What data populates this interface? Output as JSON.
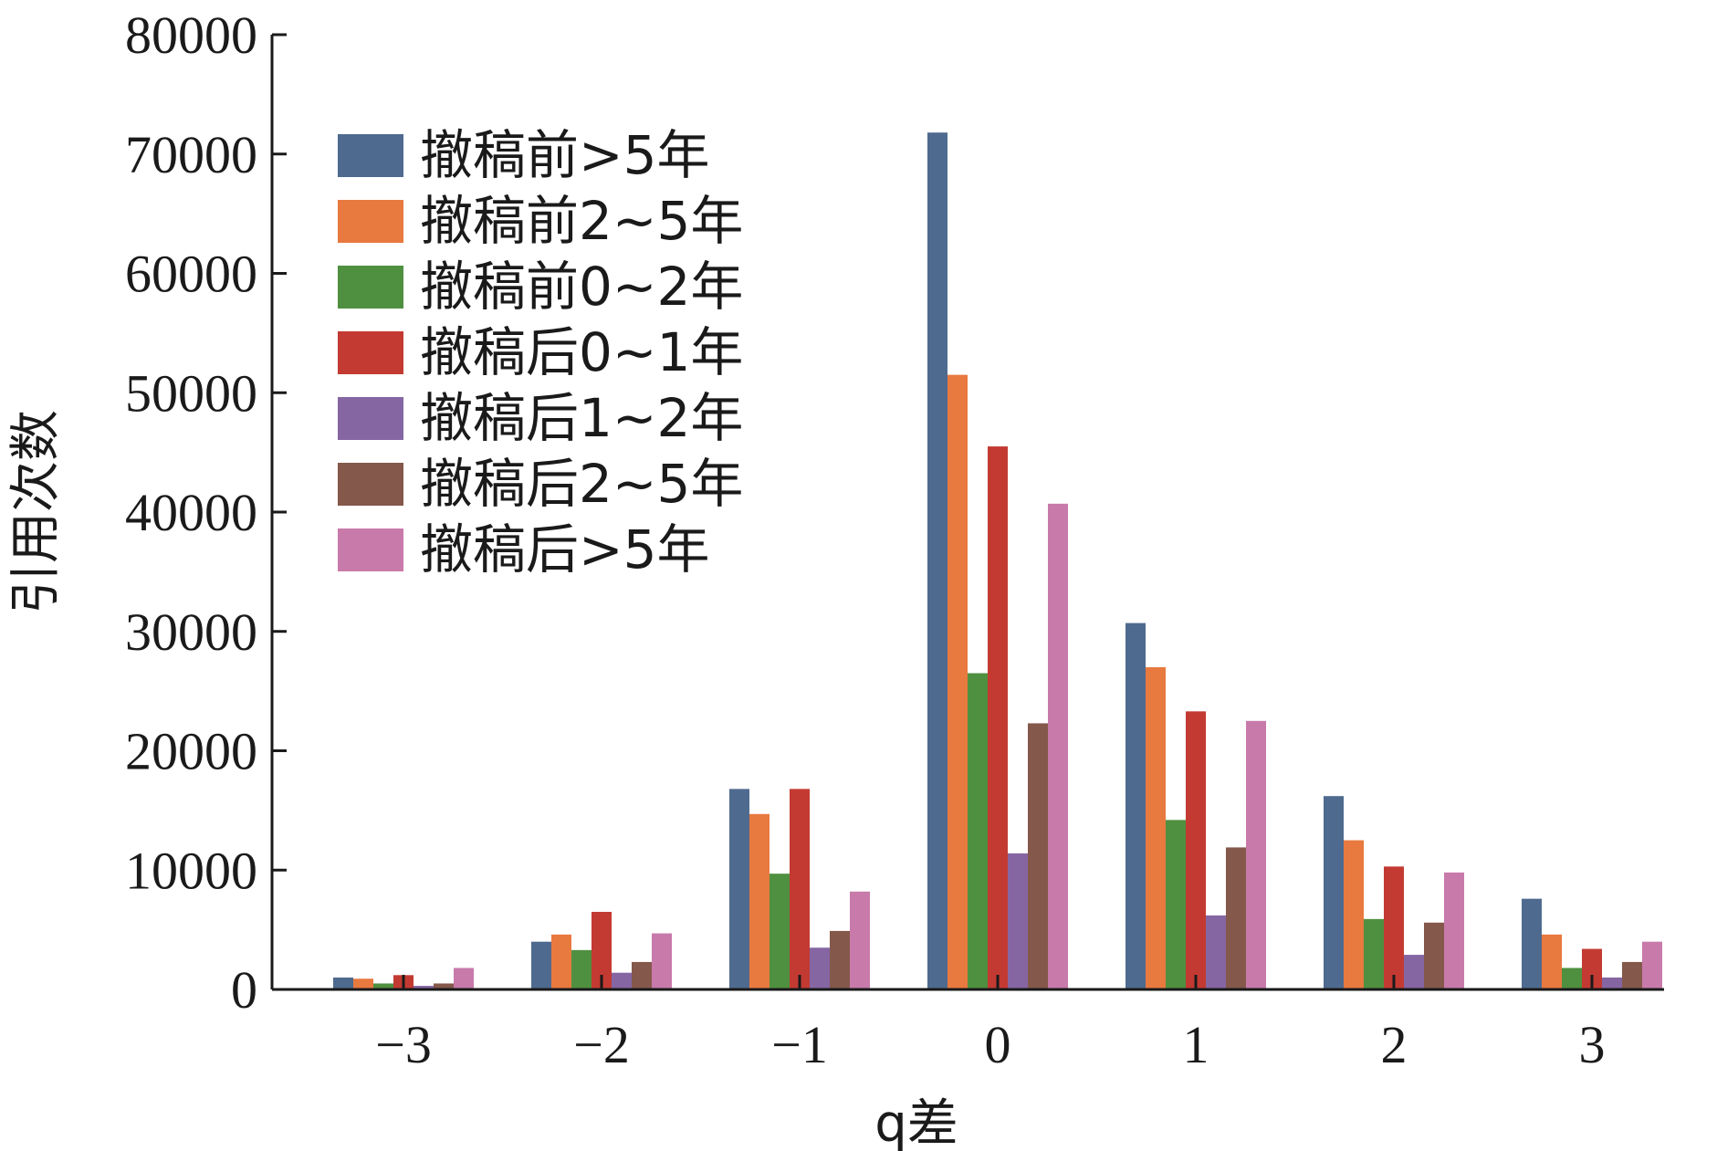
{
  "chart_data": {
    "type": "bar",
    "xlabel": "q差",
    "ylabel": "引用次数",
    "ylim": [
      0,
      80000
    ],
    "yticks": [
      "0",
      "10000",
      "20000",
      "30000",
      "40000",
      "50000",
      "60000",
      "70000",
      "80000"
    ],
    "categories": [
      "−3",
      "−2",
      "−1",
      "0",
      "1",
      "2",
      "3"
    ],
    "legend_position": "upper-left",
    "series": [
      {
        "name": "撤稿前>5年",
        "color": "#4f6a8f",
        "values": [
          1000,
          4000,
          16800,
          71800,
          30700,
          16200,
          7600
        ]
      },
      {
        "name": "撤稿前2~5年",
        "color": "#e8793f",
        "values": [
          900,
          4600,
          14700,
          51500,
          27000,
          12500,
          4600
        ]
      },
      {
        "name": "撤稿前0~2年",
        "color": "#4f9040",
        "values": [
          500,
          3300,
          9700,
          26500,
          14200,
          5900,
          1800
        ]
      },
      {
        "name": "撤稿后0~1年",
        "color": "#c33a32",
        "values": [
          1200,
          6500,
          16800,
          45500,
          23300,
          10300,
          3400
        ]
      },
      {
        "name": "撤稿后1~2年",
        "color": "#8566a3",
        "values": [
          300,
          1400,
          3500,
          11400,
          6200,
          2900,
          1000
        ]
      },
      {
        "name": "撤稿后2~5年",
        "color": "#84584b",
        "values": [
          500,
          2300,
          4900,
          22300,
          11900,
          5600,
          2300
        ]
      },
      {
        "name": "撤稿后>5年",
        "color": "#c87aaa",
        "values": [
          1800,
          4700,
          8200,
          40700,
          22500,
          9800,
          4000
        ]
      }
    ]
  }
}
